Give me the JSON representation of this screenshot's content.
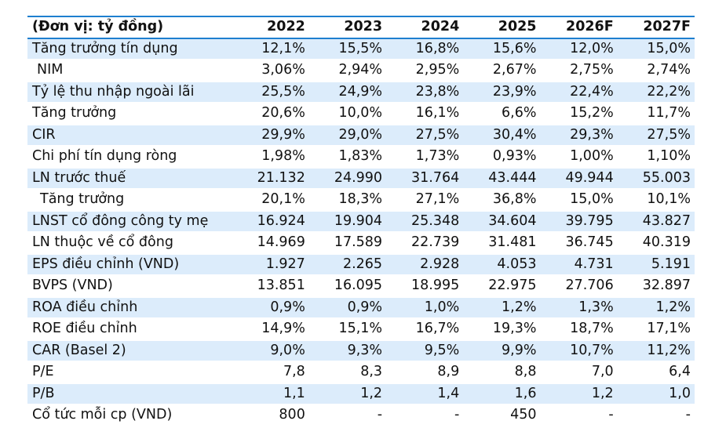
{
  "table": {
    "unit_label": "(Đơn vị: tỷ đồng)",
    "years": [
      "2022",
      "2023",
      "2024",
      "2025",
      "2026F",
      "2027F"
    ],
    "rows": [
      {
        "label": "Tăng trưởng tín dụng",
        "values": [
          "12,1%",
          "15,5%",
          "16,8%",
          "15,6%",
          "12,0%",
          "15,0%"
        ]
      },
      {
        "label": "NIM",
        "values": [
          "3,06%",
          "2,94%",
          "2,95%",
          "2,67%",
          "2,75%",
          "2,74%"
        ]
      },
      {
        "label": "Tỷ lệ thu nhập ngoài lãi",
        "values": [
          "25,5%",
          "24,9%",
          "23,8%",
          "23,9%",
          "22,4%",
          "22,2%"
        ]
      },
      {
        "label": "Tăng trưởng",
        "values": [
          "20,6%",
          "10,0%",
          "16,1%",
          "6,6%",
          "15,2%",
          "11,7%"
        ]
      },
      {
        "label": "CIR",
        "values": [
          "29,9%",
          "29,0%",
          "27,5%",
          "30,4%",
          "29,3%",
          "27,5%"
        ]
      },
      {
        "label": "Chi phí tín dụng ròng",
        "values": [
          "1,98%",
          "1,83%",
          "1,73%",
          "0,93%",
          "1,00%",
          "1,10%"
        ]
      },
      {
        "label": "LN trước thuế",
        "values": [
          "21.132",
          "24.990",
          "31.764",
          "43.444",
          "49.944",
          "55.003"
        ]
      },
      {
        "label": "Tăng trưởng",
        "values": [
          "20,1%",
          "18,3%",
          "27,1%",
          "36,8%",
          "15,0%",
          "10,1%"
        ]
      },
      {
        "label": "LNST cổ đông công ty mẹ",
        "values": [
          "16.924",
          "19.904",
          "25.348",
          "34.604",
          "39.795",
          "43.827"
        ]
      },
      {
        "label": "LN thuộc về cổ đông",
        "values": [
          "14.969",
          "17.589",
          "22.739",
          "31.481",
          "36.745",
          "40.319"
        ]
      },
      {
        "label": "EPS điều chỉnh (VND)",
        "values": [
          "1.927",
          "2.265",
          "2.928",
          "4.053",
          "4.731",
          "5.191"
        ]
      },
      {
        "label": "BVPS (VND)",
        "values": [
          "13.851",
          "16.095",
          "18.995",
          "22.975",
          "27.706",
          "32.897"
        ]
      },
      {
        "label": "ROA điều chỉnh",
        "values": [
          "0,9%",
          "0,9%",
          "1,0%",
          "1,2%",
          "1,3%",
          "1,2%"
        ]
      },
      {
        "label": "ROE điều chỉnh",
        "values": [
          "14,9%",
          "15,1%",
          "16,7%",
          "19,3%",
          "18,7%",
          "17,1%"
        ]
      },
      {
        "label": "CAR (Basel 2)",
        "values": [
          "9,0%",
          "9,3%",
          "9,5%",
          "9,9%",
          "10,7%",
          "11,2%"
        ]
      },
      {
        "label": "P/E",
        "values": [
          "7,8",
          "8,3",
          "8,9",
          "8,8",
          "7,0",
          "6,4"
        ]
      },
      {
        "label": "P/B",
        "values": [
          "1,1",
          "1,2",
          "1,4",
          "1,6",
          "1,2",
          "1,0"
        ]
      },
      {
        "label": "Cổ tức mỗi cp (VND)",
        "values": [
          "800",
          "-",
          "-",
          "450",
          "-",
          "-"
        ]
      }
    ]
  },
  "colors": {
    "accent_line": "#1e7fcf",
    "row_shade": "#dcecfb"
  }
}
